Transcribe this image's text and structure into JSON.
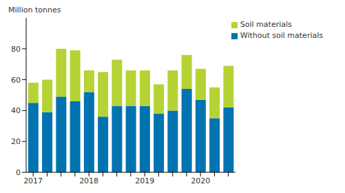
{
  "chart_data": {
    "type": "bar",
    "stacked": true,
    "y_label": "Million tonnes",
    "categories": [
      "2017",
      null,
      null,
      null,
      "2018",
      null,
      null,
      null,
      "2019",
      null,
      null,
      null,
      "2020",
      null,
      null
    ],
    "series": [
      {
        "name": "Without soil materials",
        "color": "#0073b0",
        "values": [
          45,
          39,
          49,
          46,
          52,
          36,
          43,
          43,
          43,
          38,
          40,
          54,
          47,
          35,
          42
        ]
      },
      {
        "name": "Soil materials",
        "color": "#b5d334",
        "values": [
          13,
          21,
          31,
          33,
          14,
          29,
          30,
          23,
          23,
          19,
          26,
          22,
          20,
          20,
          27
        ]
      }
    ],
    "ylim": [
      0,
      100
    ],
    "yticks": [
      0,
      20,
      40,
      60,
      80
    ],
    "grid": false,
    "legend": "upper right"
  }
}
